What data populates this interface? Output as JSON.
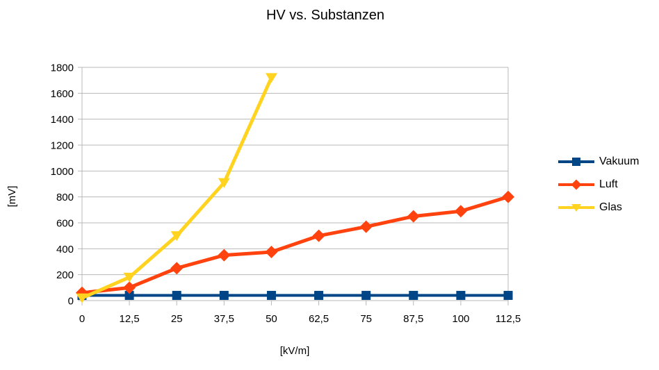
{
  "title": "HV vs. Substanzen",
  "colors": {
    "vakuum": "#004586",
    "luft": "#FF420E",
    "glas": "#FFD320",
    "grid": "#B8B8B8",
    "text": "#000000",
    "background": "#FFFFFF"
  },
  "chart_data": {
    "type": "line",
    "title": "HV vs. Substanzen",
    "xlabel": "[kV/m]",
    "ylabel": "[mV]",
    "xlim": [
      0,
      112.5
    ],
    "ylim": [
      0,
      1800
    ],
    "grid": "horizontal",
    "legend_position": "right",
    "x_ticks": [
      0,
      12.5,
      25,
      37.5,
      50,
      62.5,
      75,
      87.5,
      100,
      112.5
    ],
    "x_tick_labels": [
      "0",
      "12,5",
      "25",
      "37,5",
      "50",
      "62,5",
      "75",
      "87,5",
      "100",
      "112,5"
    ],
    "y_ticks": [
      0,
      200,
      400,
      600,
      800,
      1000,
      1200,
      1400,
      1600,
      1800
    ],
    "y_tick_labels": [
      "0",
      "200",
      "400",
      "600",
      "800",
      "1000",
      "1200",
      "1400",
      "1600",
      "1800"
    ],
    "series": [
      {
        "name": "Vakuum",
        "marker": "square",
        "color": "#004586",
        "x": [
          0,
          12.5,
          25,
          37.5,
          50,
          62.5,
          75,
          87.5,
          100,
          112.5
        ],
        "values": [
          40,
          40,
          40,
          40,
          40,
          40,
          40,
          40,
          40,
          40
        ]
      },
      {
        "name": "Luft",
        "marker": "diamond",
        "color": "#FF420E",
        "x": [
          0,
          12.5,
          25,
          37.5,
          50,
          62.5,
          75,
          87.5,
          100,
          112.5
        ],
        "values": [
          60,
          100,
          250,
          350,
          375,
          500,
          570,
          650,
          690,
          800
        ]
      },
      {
        "name": "Glas",
        "marker": "triangle-down",
        "color": "#FFD320",
        "x": [
          0,
          12.5,
          25,
          37.5,
          50
        ],
        "values": [
          20,
          180,
          500,
          910,
          1720
        ]
      }
    ]
  }
}
